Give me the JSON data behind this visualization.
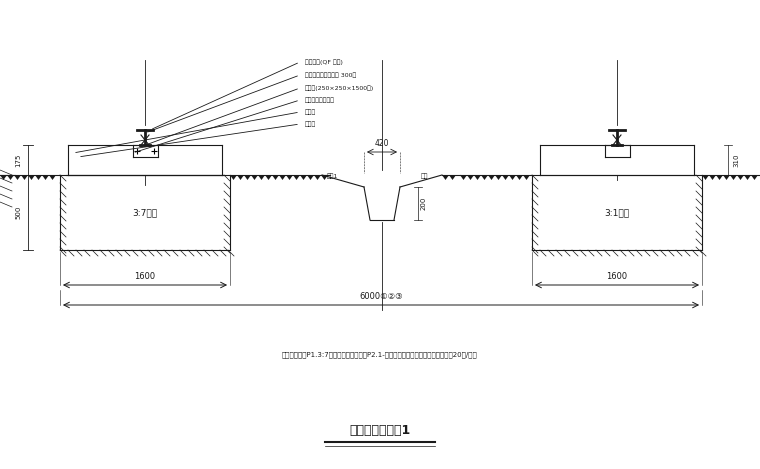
{
  "bg_color": "#ffffff",
  "line_color": "#1a1a1a",
  "fig_width": 7.6,
  "fig_height": 4.69,
  "title_text": "塔吐轨道基础图1",
  "note_text": "备注事项：、P1.3:7灰土分层回填压实、P2.1-层层素土回填压实，压实系数不小于20次/平方",
  "dim_1600": "1600",
  "dim_6000": "6000①②③",
  "dim_420": "420",
  "dim_200": "200",
  "dim_310": "310",
  "dim_175": "175",
  "dim_500": "500",
  "left_label": "3:7灰土",
  "right_label": "3:1灰土",
  "ann1": "轨道型号(QF 型号)",
  "ann2": "工字钉块尺寸及数量 300根",
  "ann3": "规格齐(250×250×1500根)",
  "ann4": "在基底海特刀压实",
  "ann5": "蓄水层",
  "ann6": "混凝土"
}
